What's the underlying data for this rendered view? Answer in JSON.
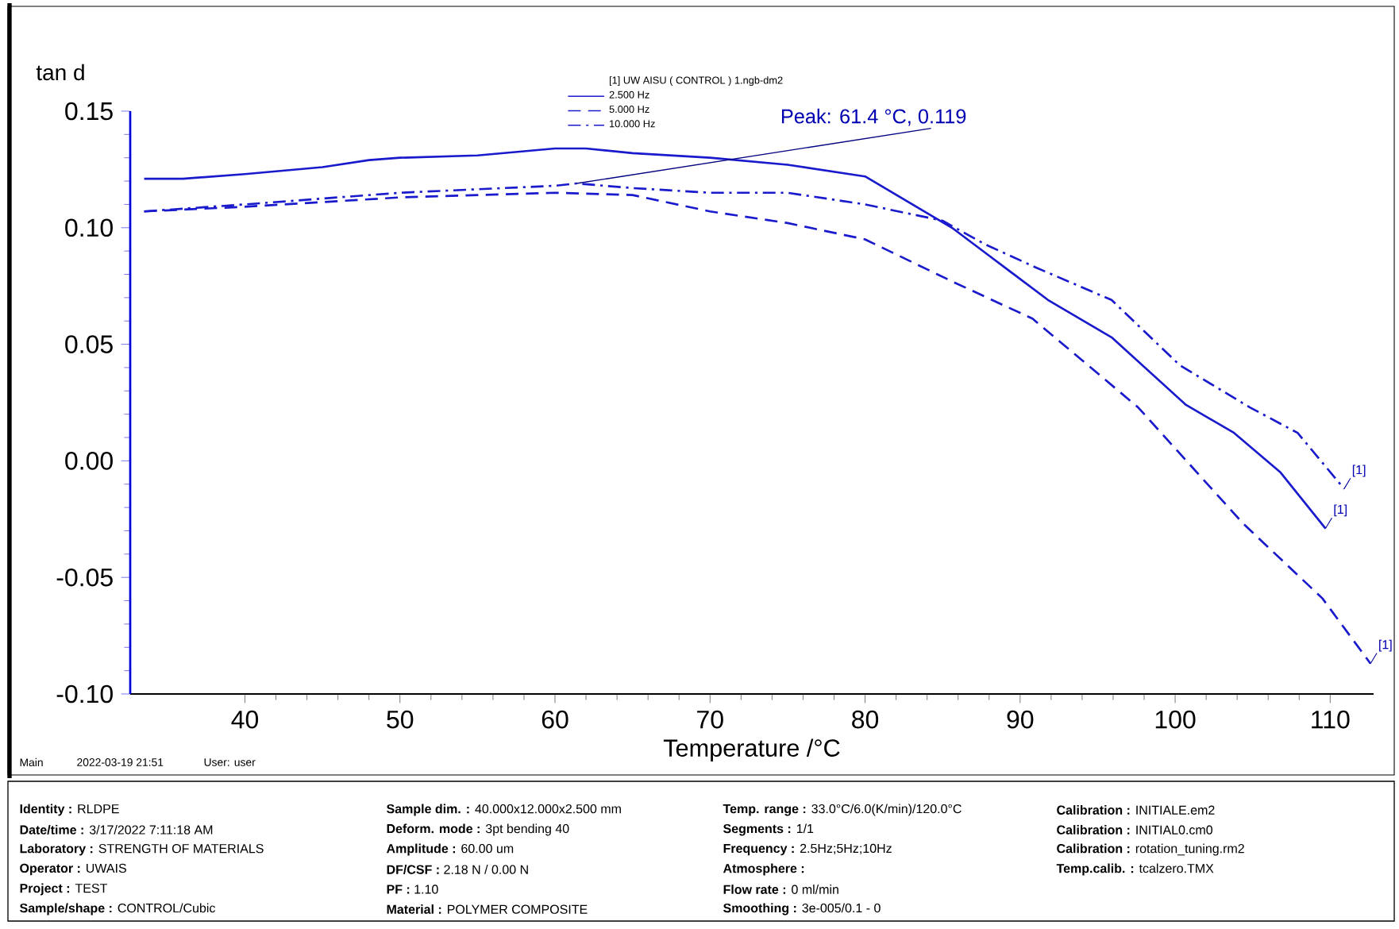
{
  "chart_data": {
    "type": "line",
    "xlabel": "Temperature /°C",
    "ylabel": "tan d",
    "legend_title": "[1] UW AISU ( CONTROL ) 1.ngb-dm2",
    "legend": "top",
    "marker": "none",
    "grid": false,
    "xlim": [
      32.6,
      112.8
    ],
    "ylim": [
      -0.1,
      0.15
    ],
    "xticks": [
      40,
      50,
      60,
      70,
      80,
      90,
      100,
      110
    ],
    "yticks": [
      {
        "value": -0.1,
        "label": "-0.10"
      },
      -0.05,
      {
        "value": 0,
        "label": "0.00"
      },
      0.05,
      {
        "value": 0.1,
        "label": "0.10"
      },
      0.15
    ],
    "series": [
      {
        "name": "2.500 Hz",
        "color": "#1a1acd",
        "line_style": "solid",
        "x": [
          33.5,
          36,
          40,
          45,
          48,
          50,
          55,
          60,
          62,
          65,
          70,
          75,
          80,
          85.6,
          88,
          91.8,
          95.9,
          100.7,
          103.8,
          106.8,
          109.7
        ],
        "values": [
          0.121,
          0.121,
          0.123,
          0.126,
          0.129,
          0.13,
          0.131,
          0.134,
          0.134,
          0.132,
          0.13,
          0.127,
          0.122,
          0.1,
          0.088,
          0.069,
          0.053,
          0.024,
          0.012,
          -0.005,
          -0.029
        ]
      },
      {
        "name": "5.000 Hz",
        "color": "#1a1acd",
        "line_style": "dashed",
        "x": [
          33.5,
          40,
          50,
          60,
          65,
          70,
          75,
          80,
          85.6,
          90.8,
          97.6,
          104.4,
          109.5,
          112.6
        ],
        "values": [
          0.107,
          0.109,
          0.113,
          0.115,
          0.114,
          0.107,
          0.102,
          0.095,
          0.077,
          0.061,
          0.023,
          -0.027,
          -0.059,
          -0.087
        ]
      },
      {
        "name": "10.000 Hz",
        "color": "#1a1acd",
        "line_style": "dashdot",
        "x": [
          33.5,
          40,
          50,
          60,
          61.4,
          65,
          70,
          75,
          80,
          85,
          87.7,
          91,
          95.9,
          100.3,
          104.8,
          107.9,
          110.9
        ],
        "values": [
          0.107,
          0.11,
          0.115,
          0.118,
          0.119,
          0.117,
          0.115,
          0.115,
          0.11,
          0.103,
          0.093,
          0.083,
          0.069,
          0.041,
          0.023,
          0.012,
          -0.012
        ]
      }
    ],
    "annotations": [
      {
        "text": "Peak: 61.4 °C, 0.119",
        "x": 61.4,
        "y": 0.119
      },
      {
        "text": "[1]",
        "x": 109.7,
        "y": -0.029
      },
      {
        "text": "[1]",
        "x": 110.9,
        "y": -0.012
      },
      {
        "text": "[1]",
        "x": 112.6,
        "y": -0.087
      },
      "Main",
      "2022-03-19 21:51",
      "User: user",
      "**Identity :** RLDPE",
      "**Date/time :** 3/17/2022 7:11:18 AM",
      "**Laboratory :** STRENGTH OF MATERIALS",
      "**Operator :** UWAIS",
      "**Project :** TEST",
      "**Sample/shape :** CONTROL/Cubic",
      "**Sample dim. :** 40.000x12.000x2.500 mm",
      "**Deform. mode :** 3pt bending 40",
      "**Amplitude :** 60.00 um",
      "**DF/CSF :** 2.18 N / 0.00 N",
      "**PF :** 1.10",
      "**Material :** POLYMER COMPOSITE",
      "**Temp. range :** 33.0°C/6.0(K/min)/120.0°C",
      "**Segments :** 1/1",
      "**Frequency :** 2.5Hz;5Hz;10Hz",
      "**Atmosphere :**",
      "**Flow rate :** 0 ml/min",
      "**Smoothing :** 3e-005/0.1 - 0",
      "**Calibration :** INITIALE.em2",
      "**Calibration :** INITIAL0.cm0",
      "**Calibration :** rotation_tuning.rm2",
      "**Temp.calib. :** tcalzero.TMX"
    ]
  }
}
